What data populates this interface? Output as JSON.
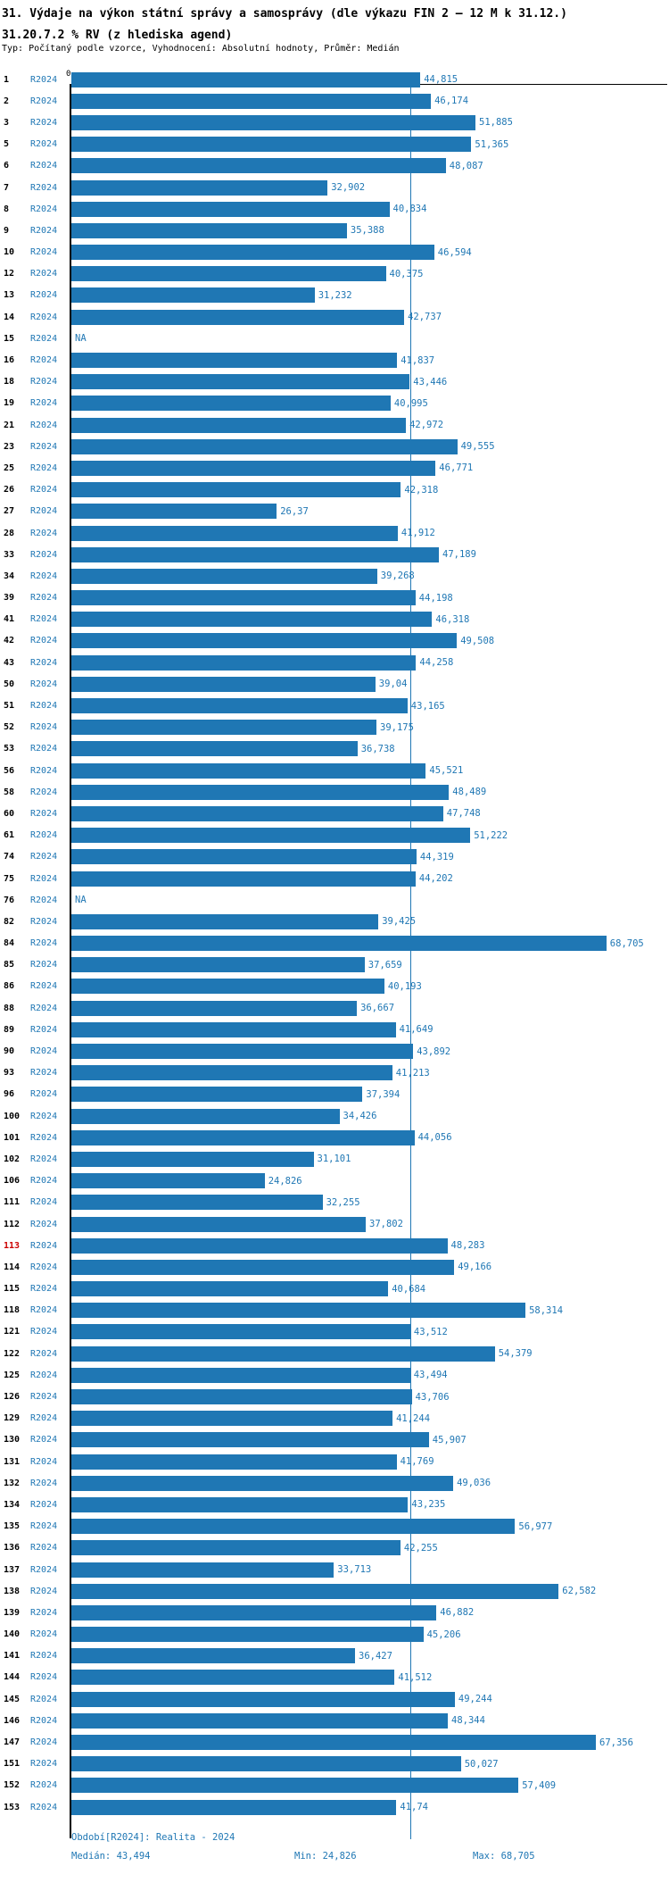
{
  "header": {
    "title": "31. Výdaje na výkon státní správy a samosprávy (dle výkazu FIN 2 – 12 M k 31.12.)",
    "subtitle": "31.20.7.2 % RV (z hlediska agend)",
    "meta": "Typ: Počítaný podle vzorce, Vyhodnocení: Absolutní hodnoty, Průměr: Medián"
  },
  "chart_data": {
    "type": "bar",
    "orientation": "horizontal",
    "title": "31.20.7.2 % RV (z hlediska agend)",
    "series_label": "R2024",
    "zero_tick": "0",
    "x_range": [
      0,
      76.5
    ],
    "median_value": 43.494,
    "min_value": 24.826,
    "max_value": 68.705,
    "highlighted_row_id": "113",
    "colors": {
      "bar": "#1f77b4",
      "value_label": "#1f77b4",
      "median_line": "#1f77b4",
      "row_number": "#000000",
      "highlighted_row_number": "#cc0000",
      "axis": "#000000"
    },
    "rows": [
      {
        "id": "1",
        "value": 44.815,
        "label": "44,815"
      },
      {
        "id": "2",
        "value": 46.174,
        "label": "46,174"
      },
      {
        "id": "3",
        "value": 51.885,
        "label": "51,885"
      },
      {
        "id": "5",
        "value": 51.365,
        "label": "51,365"
      },
      {
        "id": "6",
        "value": 48.087,
        "label": "48,087"
      },
      {
        "id": "7",
        "value": 32.902,
        "label": "32,902"
      },
      {
        "id": "8",
        "value": 40.834,
        "label": "40,834"
      },
      {
        "id": "9",
        "value": 35.388,
        "label": "35,388"
      },
      {
        "id": "10",
        "value": 46.594,
        "label": "46,594"
      },
      {
        "id": "12",
        "value": 40.375,
        "label": "40,375"
      },
      {
        "id": "13",
        "value": 31.232,
        "label": "31,232"
      },
      {
        "id": "14",
        "value": 42.737,
        "label": "42,737"
      },
      {
        "id": "15",
        "value": null,
        "label": "NA"
      },
      {
        "id": "16",
        "value": 41.837,
        "label": "41,837"
      },
      {
        "id": "18",
        "value": 43.446,
        "label": "43,446"
      },
      {
        "id": "19",
        "value": 40.995,
        "label": "40,995"
      },
      {
        "id": "21",
        "value": 42.972,
        "label": "42,972"
      },
      {
        "id": "23",
        "value": 49.555,
        "label": "49,555"
      },
      {
        "id": "25",
        "value": 46.771,
        "label": "46,771"
      },
      {
        "id": "26",
        "value": 42.318,
        "label": "42,318"
      },
      {
        "id": "27",
        "value": 26.37,
        "label": "26,37"
      },
      {
        "id": "28",
        "value": 41.912,
        "label": "41,912"
      },
      {
        "id": "33",
        "value": 47.189,
        "label": "47,189"
      },
      {
        "id": "34",
        "value": 39.268,
        "label": "39,268"
      },
      {
        "id": "39",
        "value": 44.198,
        "label": "44,198"
      },
      {
        "id": "41",
        "value": 46.318,
        "label": "46,318"
      },
      {
        "id": "42",
        "value": 49.508,
        "label": "49,508"
      },
      {
        "id": "43",
        "value": 44.258,
        "label": "44,258"
      },
      {
        "id": "50",
        "value": 39.04,
        "label": "39,04"
      },
      {
        "id": "51",
        "value": 43.165,
        "label": "43,165"
      },
      {
        "id": "52",
        "value": 39.175,
        "label": "39,175"
      },
      {
        "id": "53",
        "value": 36.738,
        "label": "36,738"
      },
      {
        "id": "56",
        "value": 45.521,
        "label": "45,521"
      },
      {
        "id": "58",
        "value": 48.489,
        "label": "48,489"
      },
      {
        "id": "60",
        "value": 47.748,
        "label": "47,748"
      },
      {
        "id": "61",
        "value": 51.222,
        "label": "51,222"
      },
      {
        "id": "74",
        "value": 44.319,
        "label": "44,319"
      },
      {
        "id": "75",
        "value": 44.202,
        "label": "44,202"
      },
      {
        "id": "76",
        "value": null,
        "label": "NA"
      },
      {
        "id": "82",
        "value": 39.425,
        "label": "39,425"
      },
      {
        "id": "84",
        "value": 68.705,
        "label": "68,705"
      },
      {
        "id": "85",
        "value": 37.659,
        "label": "37,659"
      },
      {
        "id": "86",
        "value": 40.193,
        "label": "40,193"
      },
      {
        "id": "88",
        "value": 36.667,
        "label": "36,667"
      },
      {
        "id": "89",
        "value": 41.649,
        "label": "41,649"
      },
      {
        "id": "90",
        "value": 43.892,
        "label": "43,892"
      },
      {
        "id": "93",
        "value": 41.213,
        "label": "41,213"
      },
      {
        "id": "96",
        "value": 37.394,
        "label": "37,394"
      },
      {
        "id": "100",
        "value": 34.426,
        "label": "34,426"
      },
      {
        "id": "101",
        "value": 44.056,
        "label": "44,056"
      },
      {
        "id": "102",
        "value": 31.101,
        "label": "31,101"
      },
      {
        "id": "106",
        "value": 24.826,
        "label": "24,826"
      },
      {
        "id": "111",
        "value": 32.255,
        "label": "32,255"
      },
      {
        "id": "112",
        "value": 37.802,
        "label": "37,802"
      },
      {
        "id": "113",
        "value": 48.283,
        "label": "48,283"
      },
      {
        "id": "114",
        "value": 49.166,
        "label": "49,166"
      },
      {
        "id": "115",
        "value": 40.684,
        "label": "40,684"
      },
      {
        "id": "118",
        "value": 58.314,
        "label": "58,314"
      },
      {
        "id": "121",
        "value": 43.512,
        "label": "43,512"
      },
      {
        "id": "122",
        "value": 54.379,
        "label": "54,379"
      },
      {
        "id": "125",
        "value": 43.494,
        "label": "43,494"
      },
      {
        "id": "126",
        "value": 43.706,
        "label": "43,706"
      },
      {
        "id": "129",
        "value": 41.244,
        "label": "41,244"
      },
      {
        "id": "130",
        "value": 45.907,
        "label": "45,907"
      },
      {
        "id": "131",
        "value": 41.769,
        "label": "41,769"
      },
      {
        "id": "132",
        "value": 49.036,
        "label": "49,036"
      },
      {
        "id": "134",
        "value": 43.235,
        "label": "43,235"
      },
      {
        "id": "135",
        "value": 56.977,
        "label": "56,977"
      },
      {
        "id": "136",
        "value": 42.255,
        "label": "42,255"
      },
      {
        "id": "137",
        "value": 33.713,
        "label": "33,713"
      },
      {
        "id": "138",
        "value": 62.582,
        "label": "62,582"
      },
      {
        "id": "139",
        "value": 46.882,
        "label": "46,882"
      },
      {
        "id": "140",
        "value": 45.206,
        "label": "45,206"
      },
      {
        "id": "141",
        "value": 36.427,
        "label": "36,427"
      },
      {
        "id": "144",
        "value": 41.512,
        "label": "41,512"
      },
      {
        "id": "145",
        "value": 49.244,
        "label": "49,244"
      },
      {
        "id": "146",
        "value": 48.344,
        "label": "48,344"
      },
      {
        "id": "147",
        "value": 67.356,
        "label": "67,356"
      },
      {
        "id": "151",
        "value": 50.027,
        "label": "50,027"
      },
      {
        "id": "152",
        "value": 57.409,
        "label": "57,409"
      },
      {
        "id": "153",
        "value": 41.74,
        "label": "41,74"
      }
    ]
  },
  "footer": {
    "period": "Období[R2024]: Realita - 2024",
    "median": "Medián: 43,494",
    "min": "Min: 24,826",
    "max": "Max: 68,705"
  }
}
